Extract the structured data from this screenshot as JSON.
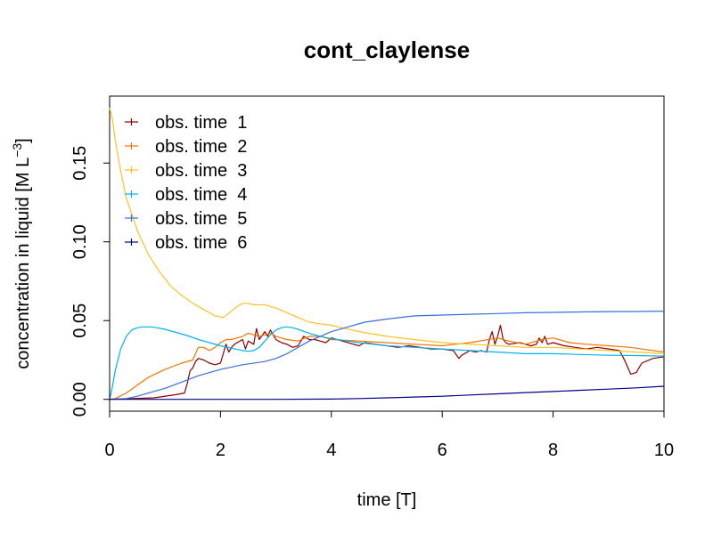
{
  "chart_data": {
    "type": "line",
    "title": "cont_claylense",
    "xlabel": "time [T]",
    "ylabel": "concentration in liquid [M L",
    "ylabel_sup": "−3",
    "ylabel_end": "]",
    "xlim": [
      0,
      10
    ],
    "ylim": [
      -0.0075,
      0.1925
    ],
    "x_ticks": [
      "0",
      "2",
      "4",
      "6",
      "8",
      "10"
    ],
    "y_ticks": [
      "0.00",
      "0.05",
      "0.10",
      "0.15"
    ],
    "grid": false,
    "legend_position": "top-left",
    "series": [
      {
        "name": "obs. time  1",
        "color": "#8B0000",
        "x": [
          0,
          0.8,
          1.2,
          1.35,
          1.4,
          1.45,
          1.5,
          1.55,
          1.6,
          1.7,
          1.8,
          1.9,
          2.0,
          2.1,
          2.15,
          2.2,
          2.25,
          2.3,
          2.4,
          2.45,
          2.5,
          2.6,
          2.65,
          2.7,
          2.8,
          2.85,
          2.9,
          3.0,
          3.1,
          3.2,
          3.3,
          3.4,
          3.5,
          3.6,
          3.7,
          3.8,
          3.9,
          4.0,
          4.2,
          4.4,
          4.5,
          4.6,
          4.8,
          5.0,
          5.2,
          5.4,
          5.6,
          5.8,
          6.0,
          6.2,
          6.3,
          6.35,
          6.5,
          6.6,
          6.7,
          6.8,
          6.85,
          6.9,
          6.95,
          7.0,
          7.05,
          7.1,
          7.15,
          7.2,
          7.4,
          7.6,
          7.7,
          7.75,
          7.8,
          7.85,
          7.9,
          8.0,
          8.2,
          8.4,
          8.6,
          8.8,
          9.0,
          9.2,
          9.3,
          9.4,
          9.5,
          9.6,
          9.8,
          10.0
        ],
        "y": [
          0.0,
          0.001,
          0.003,
          0.004,
          0.01,
          0.018,
          0.02,
          0.024,
          0.026,
          0.025,
          0.023,
          0.022,
          0.023,
          0.035,
          0.03,
          0.033,
          0.035,
          0.036,
          0.038,
          0.032,
          0.037,
          0.035,
          0.045,
          0.038,
          0.043,
          0.04,
          0.044,
          0.038,
          0.036,
          0.035,
          0.033,
          0.034,
          0.04,
          0.038,
          0.038,
          0.037,
          0.036,
          0.039,
          0.037,
          0.035,
          0.034,
          0.036,
          0.035,
          0.034,
          0.033,
          0.034,
          0.033,
          0.032,
          0.032,
          0.031,
          0.026,
          0.028,
          0.031,
          0.03,
          0.031,
          0.03,
          0.038,
          0.043,
          0.035,
          0.04,
          0.047,
          0.038,
          0.036,
          0.035,
          0.036,
          0.034,
          0.035,
          0.039,
          0.036,
          0.04,
          0.035,
          0.036,
          0.034,
          0.033,
          0.032,
          0.033,
          0.032,
          0.031,
          0.024,
          0.016,
          0.017,
          0.023,
          0.026,
          0.027
        ]
      },
      {
        "name": "obs. time  2",
        "color": "#EE7600",
        "x": [
          0,
          0.1,
          0.3,
          0.5,
          0.7,
          1.0,
          1.3,
          1.5,
          1.6,
          1.7,
          1.8,
          1.9,
          2.0,
          2.1,
          2.2,
          2.3,
          2.4,
          2.5,
          2.6,
          2.7,
          2.8,
          2.9,
          3.0,
          3.2,
          3.4,
          3.6,
          3.8,
          4.0,
          4.5,
          5.0,
          5.5,
          6.0,
          6.5,
          7.0,
          7.2,
          7.5,
          7.8,
          8.0,
          8.3,
          8.6,
          9.0,
          9.4,
          9.8,
          10.0
        ],
        "y": [
          0.0,
          0.0005,
          0.004,
          0.009,
          0.014,
          0.019,
          0.023,
          0.025,
          0.033,
          0.033,
          0.031,
          0.033,
          0.036,
          0.038,
          0.038,
          0.039,
          0.04,
          0.042,
          0.041,
          0.04,
          0.041,
          0.042,
          0.04,
          0.038,
          0.037,
          0.04,
          0.04,
          0.038,
          0.037,
          0.036,
          0.035,
          0.034,
          0.036,
          0.039,
          0.037,
          0.035,
          0.038,
          0.039,
          0.036,
          0.035,
          0.034,
          0.033,
          0.031,
          0.03
        ]
      },
      {
        "name": "obs. time  3",
        "color": "#FFC125",
        "x": [
          0,
          0.05,
          0.1,
          0.2,
          0.3,
          0.5,
          0.7,
          0.9,
          1.1,
          1.3,
          1.5,
          1.7,
          1.9,
          2.05,
          2.2,
          2.3,
          2.4,
          2.5,
          2.6,
          2.8,
          3.0,
          3.2,
          3.4,
          3.6,
          3.8,
          4.0,
          4.5,
          5.0,
          5.5,
          6.0,
          6.5,
          7.0,
          7.5,
          8.0,
          8.5,
          9.0,
          9.5,
          10.0
        ],
        "y": [
          0.185,
          0.178,
          0.165,
          0.145,
          0.128,
          0.107,
          0.092,
          0.081,
          0.072,
          0.066,
          0.061,
          0.057,
          0.053,
          0.052,
          0.056,
          0.059,
          0.061,
          0.061,
          0.06,
          0.06,
          0.058,
          0.055,
          0.052,
          0.049,
          0.048,
          0.047,
          0.043,
          0.04,
          0.038,
          0.036,
          0.035,
          0.034,
          0.033,
          0.033,
          0.032,
          0.031,
          0.03,
          0.029
        ]
      },
      {
        "name": "obs. time  4",
        "color": "#00B2EE",
        "x": [
          0,
          0.05,
          0.1,
          0.2,
          0.3,
          0.4,
          0.5,
          0.6,
          0.7,
          0.8,
          1.0,
          1.2,
          1.4,
          1.6,
          1.8,
          2.0,
          2.2,
          2.4,
          2.5,
          2.6,
          2.7,
          2.8,
          2.9,
          3.0,
          3.1,
          3.2,
          3.3,
          3.4,
          3.6,
          3.8,
          4.0,
          4.5,
          5.0,
          5.5,
          6.0,
          6.5,
          7.0,
          7.5,
          8.0,
          8.5,
          9.0,
          9.5,
          10.0
        ],
        "y": [
          0.0,
          0.008,
          0.018,
          0.032,
          0.04,
          0.044,
          0.0455,
          0.046,
          0.046,
          0.0458,
          0.0445,
          0.0425,
          0.0405,
          0.038,
          0.036,
          0.034,
          0.0325,
          0.031,
          0.0305,
          0.031,
          0.033,
          0.037,
          0.041,
          0.044,
          0.0455,
          0.046,
          0.0455,
          0.0445,
          0.042,
          0.04,
          0.0385,
          0.036,
          0.034,
          0.033,
          0.032,
          0.031,
          0.03,
          0.029,
          0.029,
          0.0285,
          0.028,
          0.0278,
          0.0275
        ]
      },
      {
        "name": "obs. time  5",
        "color": "#3A6FD8",
        "x": [
          0,
          0.3,
          0.5,
          0.7,
          1.0,
          1.3,
          1.6,
          2.0,
          2.4,
          2.8,
          3.0,
          3.2,
          3.4,
          3.6,
          3.8,
          4.0,
          4.3,
          4.6,
          5.0,
          5.5,
          6.0,
          6.5,
          7.0,
          7.5,
          8.0,
          8.5,
          9.0,
          9.5,
          10.0
        ],
        "y": [
          0.0,
          0.0005,
          0.002,
          0.004,
          0.007,
          0.011,
          0.015,
          0.019,
          0.022,
          0.024,
          0.026,
          0.029,
          0.033,
          0.037,
          0.04,
          0.043,
          0.046,
          0.049,
          0.051,
          0.053,
          0.0535,
          0.054,
          0.0545,
          0.055,
          0.0552,
          0.0555,
          0.0557,
          0.0558,
          0.056
        ]
      },
      {
        "name": "obs. time  6",
        "color": "#00008B",
        "x": [
          0,
          1.0,
          2.0,
          3.0,
          4.0,
          4.5,
          5.0,
          5.5,
          6.0,
          6.5,
          7.0,
          7.5,
          8.0,
          8.5,
          9.0,
          9.5,
          10.0
        ],
        "y": [
          0.0,
          0.0,
          0.0,
          0.0,
          0.0002,
          0.0005,
          0.001,
          0.0015,
          0.002,
          0.0028,
          0.0035,
          0.0043,
          0.005,
          0.0058,
          0.0065,
          0.0073,
          0.0083
        ]
      }
    ]
  }
}
